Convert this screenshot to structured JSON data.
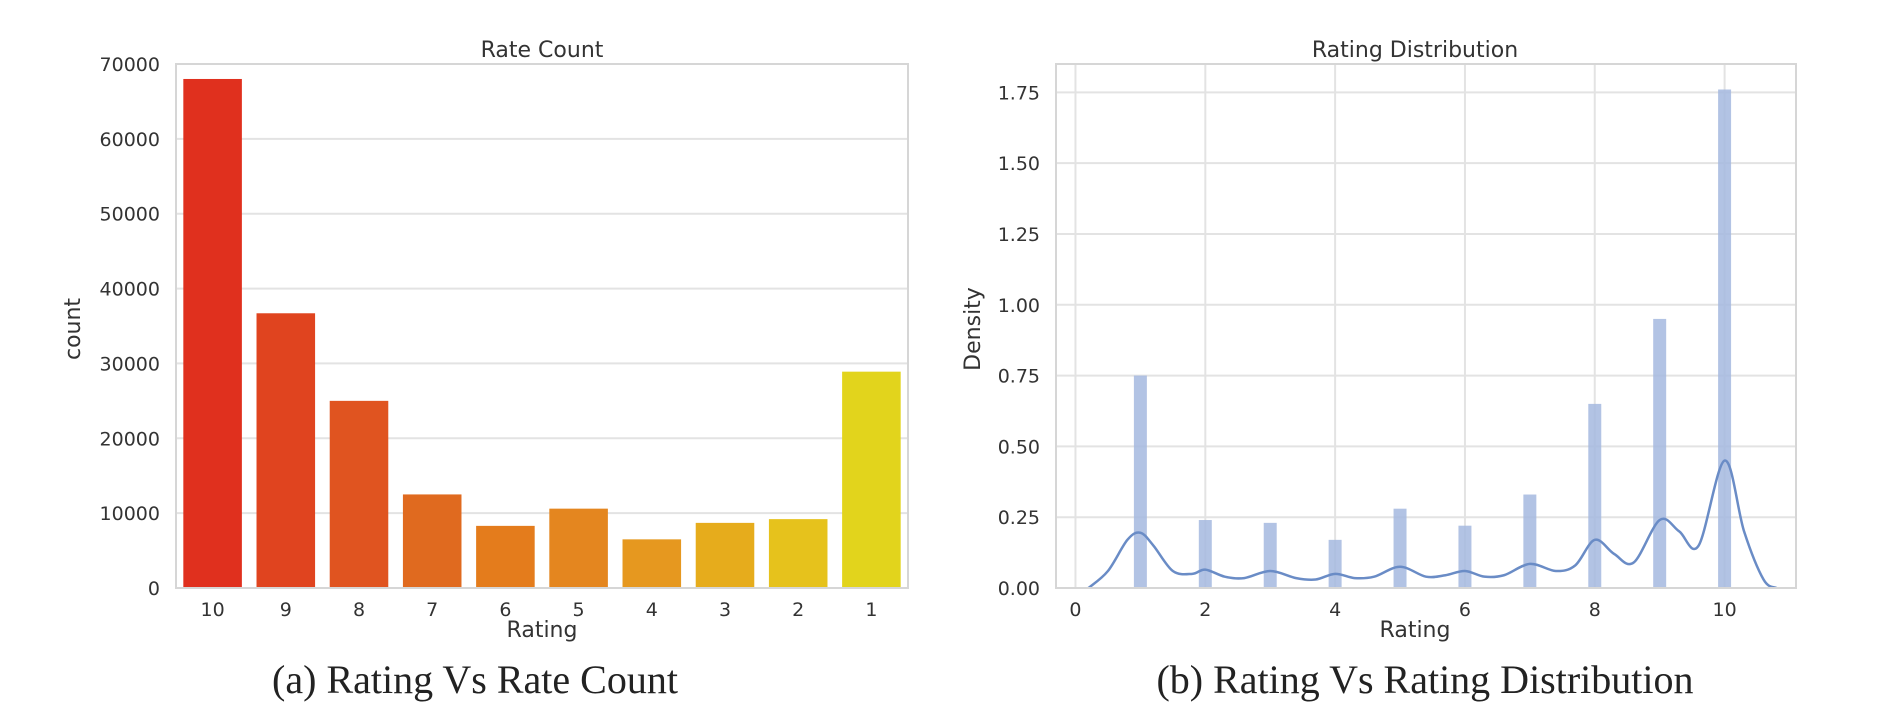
{
  "figure": {
    "captions": {
      "a": "(a) Rating Vs Rate Count",
      "b": "(b) Rating Vs Rating Distribution"
    }
  },
  "chart_data": [
    {
      "type": "bar",
      "title": "Rate Count",
      "xlabel": "Rating",
      "ylabel": "count",
      "categories": [
        "10",
        "9",
        "8",
        "7",
        "6",
        "5",
        "4",
        "3",
        "2",
        "1"
      ],
      "values": [
        68000,
        36700,
        25000,
        12500,
        8300,
        10600,
        6500,
        8700,
        9200,
        28900
      ],
      "colors": [
        "#e0301e",
        "#e0441f",
        "#e05420",
        "#e06a1f",
        "#e47c1c",
        "#e4861f",
        "#e6981f",
        "#e6ac1c",
        "#e6c21c",
        "#e2d41c"
      ],
      "ylim": [
        0,
        70000
      ],
      "yticks": [
        0,
        10000,
        20000,
        30000,
        40000,
        50000,
        60000,
        70000
      ],
      "grid": true
    },
    {
      "type": "bar",
      "title": "Rating Distribution",
      "xlabel": "Rating",
      "ylabel": "Density",
      "x": [
        1,
        2,
        3,
        4,
        5,
        6,
        7,
        8,
        9,
        10
      ],
      "values": [
        0.75,
        0.24,
        0.23,
        0.17,
        0.28,
        0.22,
        0.33,
        0.65,
        0.95,
        1.76
      ],
      "kde": {
        "x": [
          0.2,
          0.5,
          0.8,
          1.0,
          1.2,
          1.5,
          1.8,
          2.0,
          2.3,
          2.6,
          3.0,
          3.4,
          3.7,
          4.0,
          4.3,
          4.6,
          5.0,
          5.4,
          5.7,
          6.0,
          6.3,
          6.6,
          7.0,
          7.4,
          7.7,
          8.0,
          8.3,
          8.6,
          9.0,
          9.3,
          9.6,
          10.0,
          10.3,
          10.6,
          10.8
        ],
        "y": [
          0.0,
          0.06,
          0.17,
          0.195,
          0.15,
          0.06,
          0.05,
          0.065,
          0.04,
          0.035,
          0.06,
          0.035,
          0.03,
          0.05,
          0.035,
          0.04,
          0.075,
          0.04,
          0.045,
          0.06,
          0.04,
          0.045,
          0.085,
          0.06,
          0.08,
          0.17,
          0.12,
          0.09,
          0.24,
          0.2,
          0.15,
          0.45,
          0.2,
          0.03,
          0.0
        ]
      },
      "bar_color": "#a4b8df",
      "line_color": "#6a8cc6",
      "xlim": [
        -0.3,
        11.1
      ],
      "ylim": [
        0,
        1.85
      ],
      "xticks": [
        0,
        2,
        4,
        6,
        8,
        10
      ],
      "yticks": [
        "0.00",
        "0.25",
        "0.50",
        "0.75",
        "1.00",
        "1.25",
        "1.50",
        "1.75"
      ],
      "grid": true
    }
  ]
}
